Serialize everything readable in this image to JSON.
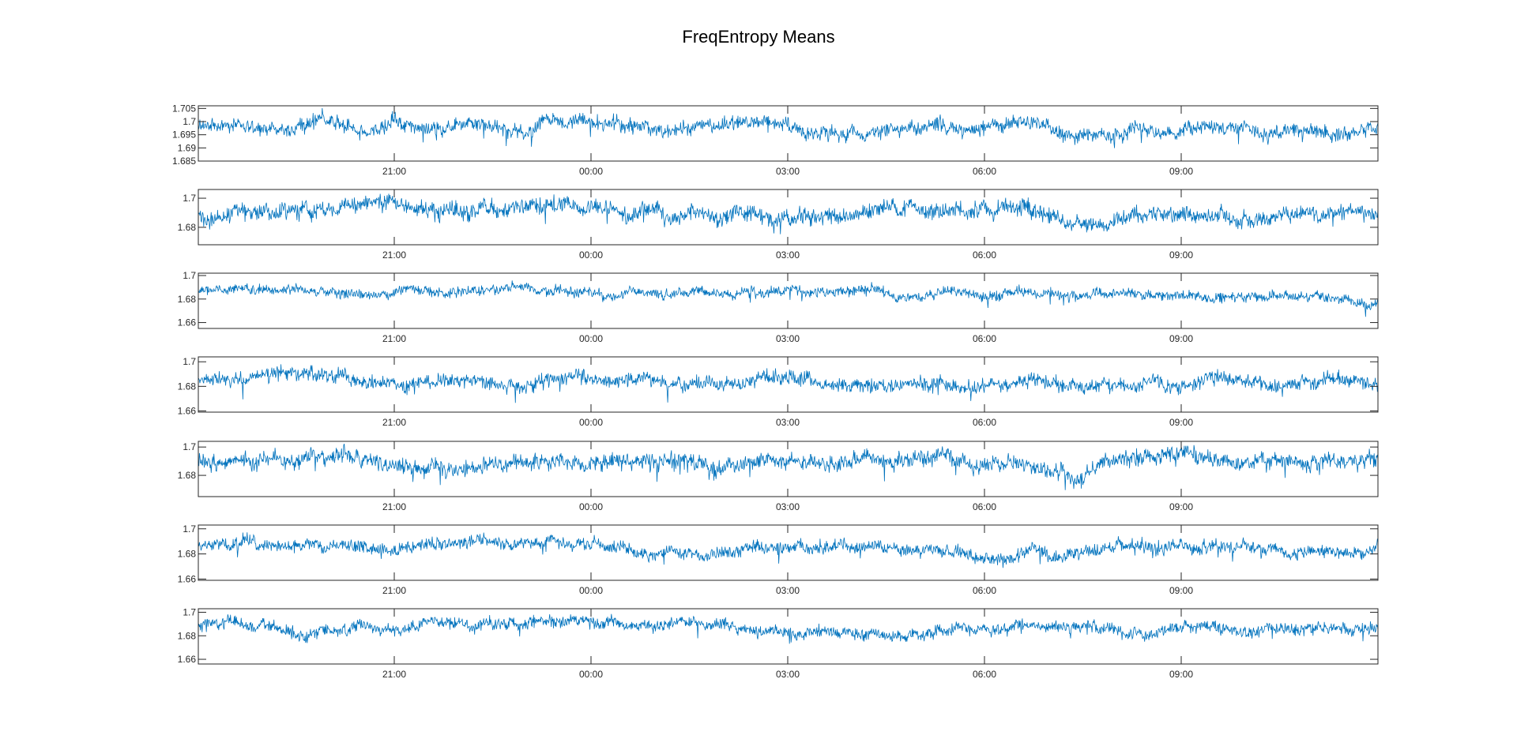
{
  "title": "FreqEntropy Means",
  "colors": {
    "trace": "#0072BD",
    "axis": "#262626",
    "background": "#ffffff"
  },
  "chart_data": [
    {
      "type": "line",
      "series_style": "dense noisy time series",
      "baseline": 1.698,
      "noise": 0.003,
      "trend": -0.002,
      "ylim": [
        1.685,
        1.706
      ],
      "yticks": [
        "1.705",
        "1.7",
        "1.695",
        "1.69",
        "1.685"
      ],
      "ytick_values": [
        1.705,
        1.7,
        1.695,
        1.69,
        1.685
      ],
      "xticks": [
        "21:00",
        "00:00",
        "03:00",
        "06:00",
        "09:00"
      ],
      "xlabel": "",
      "ylabel": "",
      "grid": false
    },
    {
      "type": "line",
      "series_style": "dense noisy time series",
      "baseline": 1.69,
      "noise": 0.006,
      "trend": 0.0,
      "ylim": [
        1.668,
        1.706
      ],
      "yticks": [
        "1.7",
        "1.68"
      ],
      "ytick_values": [
        1.7,
        1.68
      ],
      "xticks": [
        "21:00",
        "00:00",
        "03:00",
        "06:00",
        "09:00"
      ],
      "xlabel": "",
      "ylabel": "",
      "grid": false
    },
    {
      "type": "line",
      "series_style": "dense noisy time series",
      "baseline": 1.688,
      "noise": 0.0045,
      "trend": -0.006,
      "ylim": [
        1.655,
        1.702
      ],
      "yticks": [
        "1.7",
        "1.68",
        "1.66"
      ],
      "ytick_values": [
        1.7,
        1.68,
        1.66
      ],
      "xticks": [
        "21:00",
        "00:00",
        "03:00",
        "06:00",
        "09:00"
      ],
      "xlabel": "",
      "ylabel": "",
      "grid": false
    },
    {
      "type": "line",
      "series_style": "dense noisy time series",
      "baseline": 1.686,
      "noise": 0.006,
      "trend": -0.002,
      "ylim": [
        1.659,
        1.704
      ],
      "yticks": [
        "1.7",
        "1.68",
        "1.66"
      ],
      "ytick_values": [
        1.7,
        1.68,
        1.66
      ],
      "xticks": [
        "21:00",
        "00:00",
        "03:00",
        "06:00",
        "09:00"
      ],
      "xlabel": "",
      "ylabel": "",
      "grid": false
    },
    {
      "type": "line",
      "series_style": "dense noisy time series",
      "baseline": 1.689,
      "noise": 0.006,
      "trend": -0.001,
      "ylim": [
        1.665,
        1.704
      ],
      "yticks": [
        "1.7",
        "1.68"
      ],
      "ytick_values": [
        1.7,
        1.68
      ],
      "xticks": [
        "21:00",
        "00:00",
        "03:00",
        "06:00",
        "09:00"
      ],
      "xlabel": "",
      "ylabel": "",
      "grid": false
    },
    {
      "type": "line",
      "series_style": "dense noisy time series",
      "baseline": 1.686,
      "noise": 0.0055,
      "trend": -0.001,
      "ylim": [
        1.659,
        1.703
      ],
      "yticks": [
        "1.7",
        "1.68",
        "1.66"
      ],
      "ytick_values": [
        1.7,
        1.68,
        1.66
      ],
      "xticks": [
        "21:00",
        "00:00",
        "03:00",
        "06:00",
        "09:00"
      ],
      "xlabel": "",
      "ylabel": "",
      "grid": false
    },
    {
      "type": "line",
      "series_style": "dense noisy time series",
      "baseline": 1.687,
      "noise": 0.0055,
      "trend": -0.002,
      "ylim": [
        1.656,
        1.703
      ],
      "yticks": [
        "1.7",
        "1.68",
        "1.66"
      ],
      "ytick_values": [
        1.7,
        1.68,
        1.66
      ],
      "xticks": [
        "21:00",
        "00:00",
        "03:00",
        "06:00",
        "09:00"
      ],
      "xlabel": "",
      "ylabel": "",
      "grid": false
    }
  ]
}
